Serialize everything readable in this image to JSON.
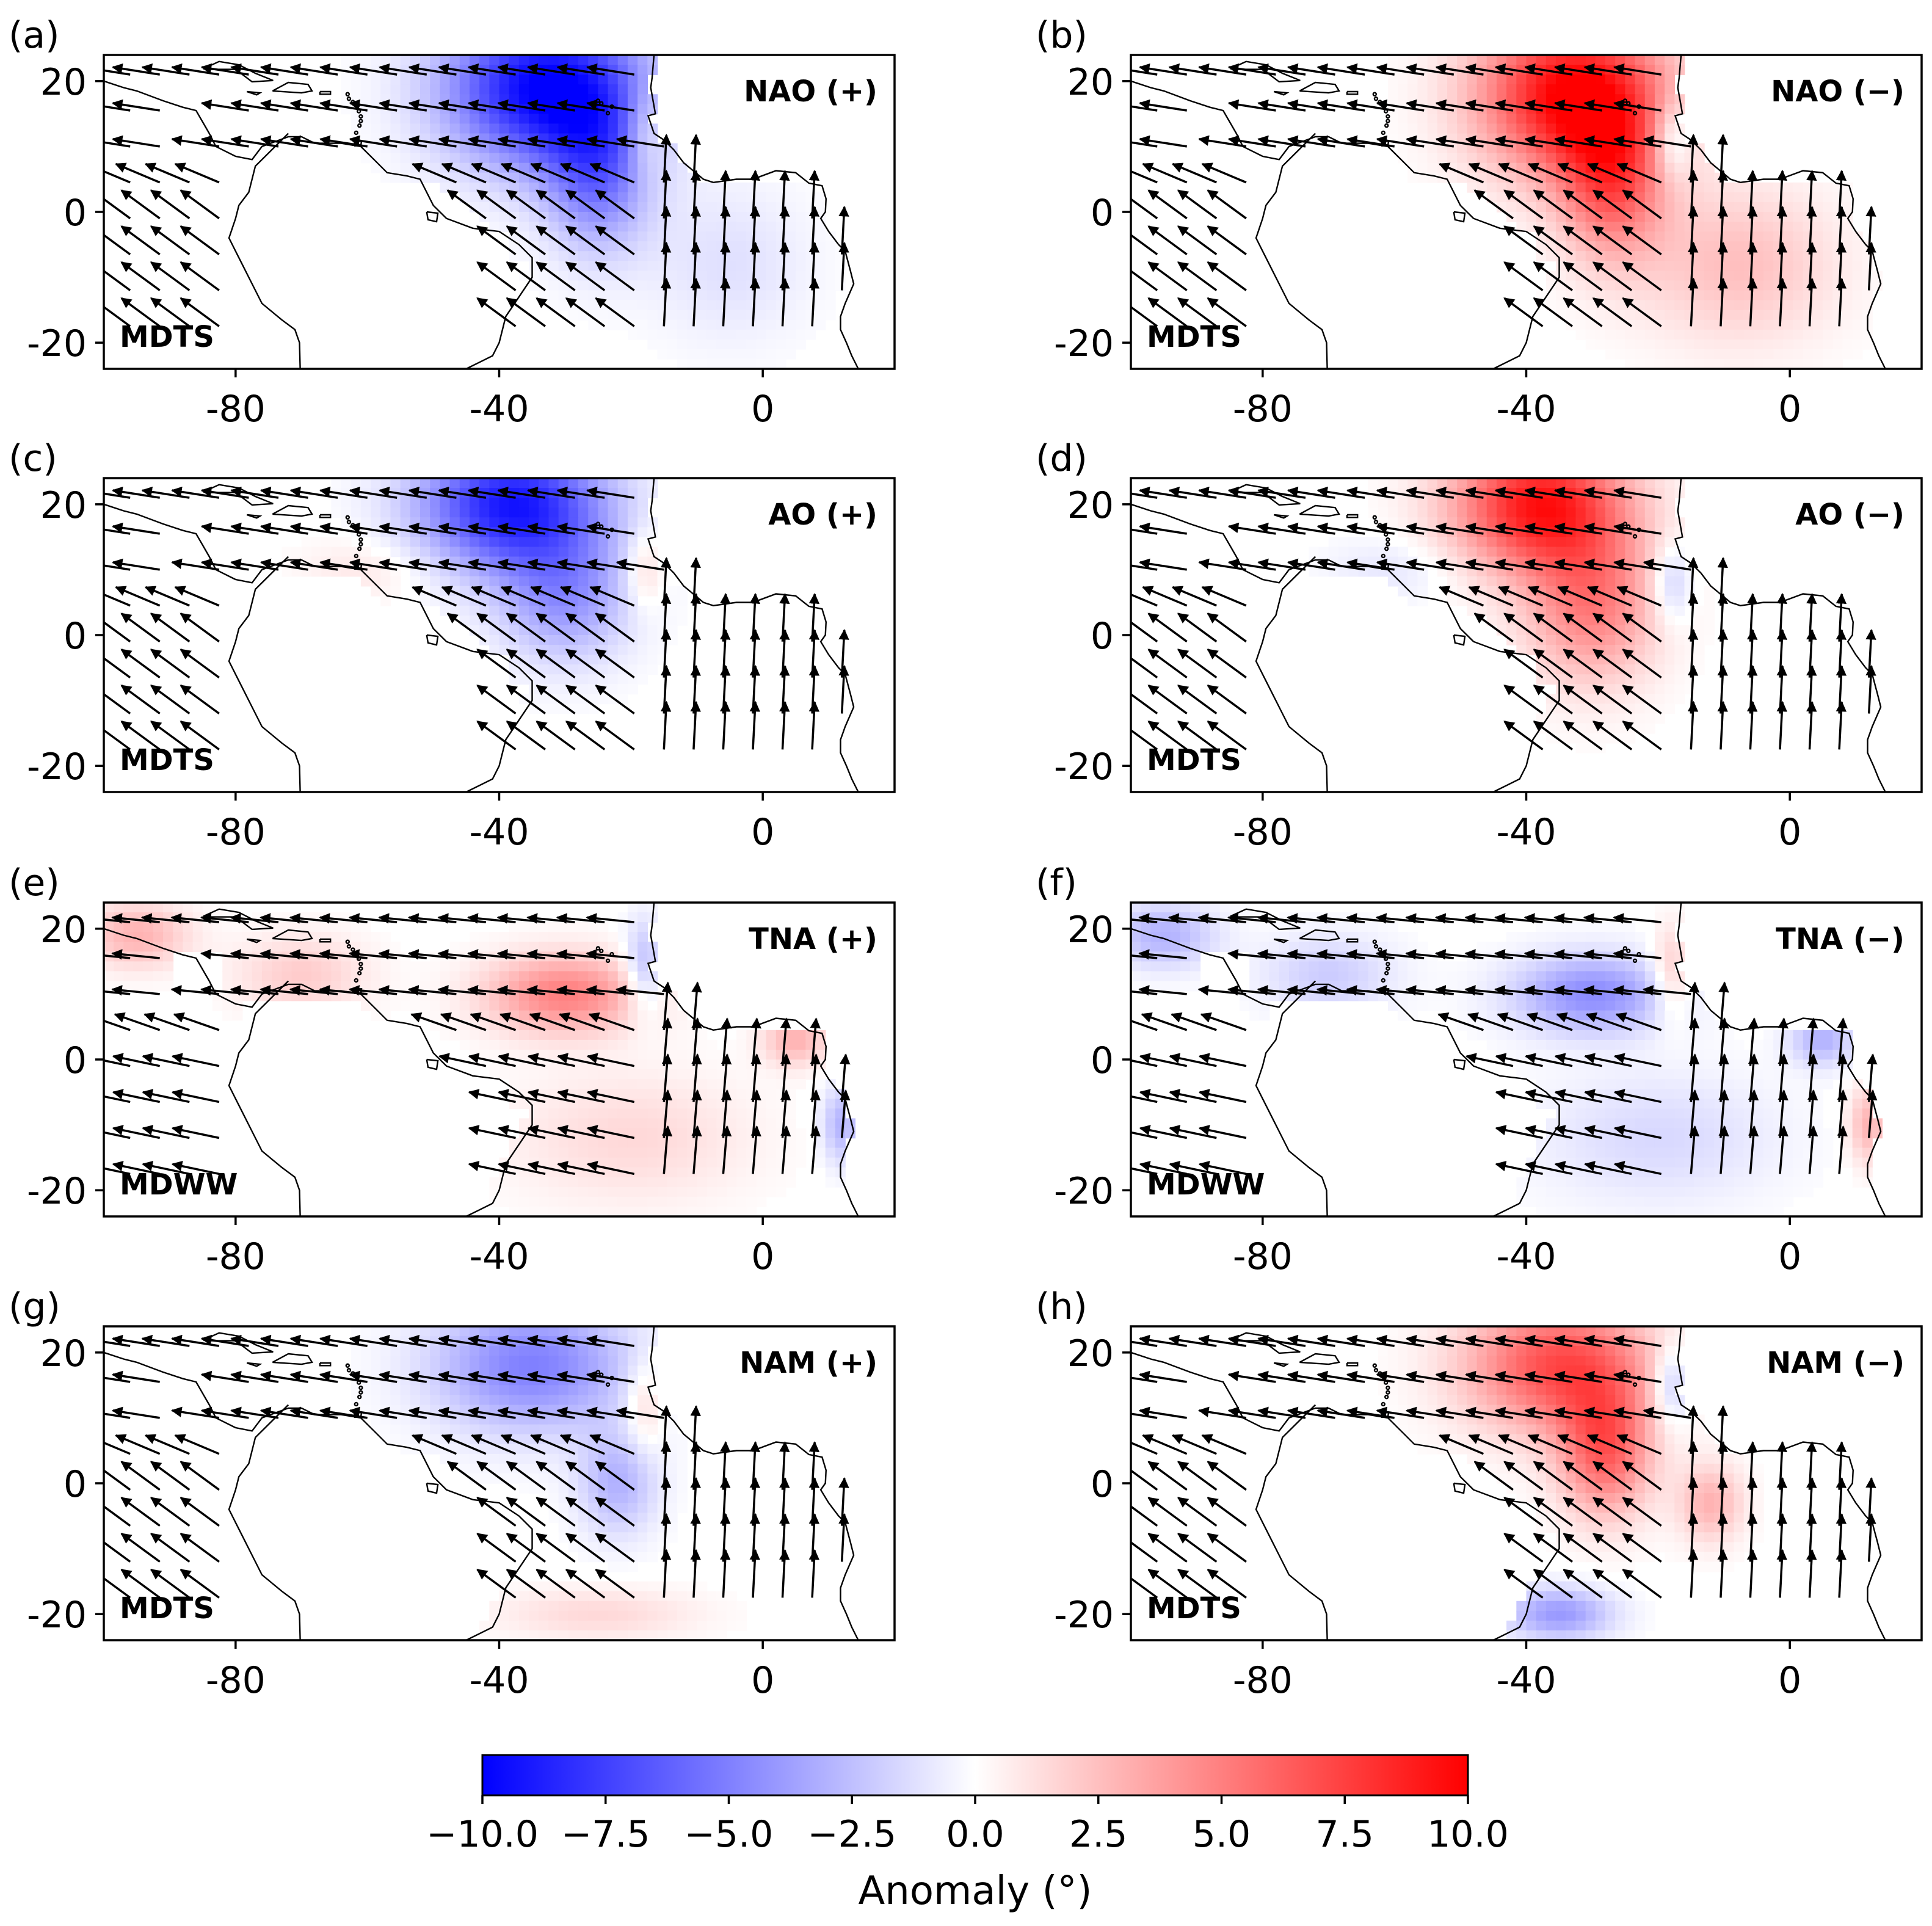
{
  "figure": {
    "colorbar": {
      "label": "Anomaly (°)",
      "vmin": -10.0,
      "vmax": 10.0,
      "ticks": [
        "−10.0",
        "−7.5",
        "−5.0",
        "−2.5",
        "0.0",
        "2.5",
        "5.0",
        "7.5",
        "10.0"
      ],
      "colors": {
        "low": "#0000ff",
        "mid": "#ffffff",
        "high": "#ff0000"
      }
    }
  },
  "chart_data": [
    {
      "type": "heatmap",
      "panel_label": "(a)",
      "index": "NAO (+)",
      "variable": "MDTS",
      "xlim": [
        -100,
        20
      ],
      "ylim": [
        -24,
        24
      ],
      "xticks": [
        "-80",
        "-40",
        "0"
      ],
      "yticks": [
        "20",
        "0",
        "-20"
      ],
      "anomaly_centers": [
        {
          "lon": -33,
          "lat": 19,
          "value": -10.0,
          "spread_lon": 15,
          "spread_lat": 12
        },
        {
          "lon": -25,
          "lat": 6,
          "value": -5.0,
          "spread_lon": 8,
          "spread_lat": 12
        },
        {
          "lon": -18,
          "lat": 12,
          "value": 2.0,
          "spread_lon": 3,
          "spread_lat": 7
        },
        {
          "lon": -5,
          "lat": -8,
          "value": -1.2,
          "spread_lon": 12,
          "spread_lat": 12
        }
      ],
      "wind_field": {
        "u_north": -0.95,
        "v_north": 0.05,
        "v_east": 0.95,
        "u_south": -0.75,
        "v_south": 0.55
      }
    },
    {
      "type": "heatmap",
      "panel_label": "(b)",
      "index": "NAO (−)",
      "variable": "MDTS",
      "xlim": [
        -100,
        20
      ],
      "ylim": [
        -24,
        24
      ],
      "xticks": [
        "-80",
        "-40",
        "0"
      ],
      "yticks": [
        "20",
        "0",
        "-20"
      ],
      "anomaly_centers": [
        {
          "lon": -33,
          "lat": 18,
          "value": 10.0,
          "spread_lon": 14,
          "spread_lat": 12
        },
        {
          "lon": -27,
          "lat": 5,
          "value": 6.0,
          "spread_lon": 8,
          "spread_lat": 12
        },
        {
          "lon": -18,
          "lat": 11,
          "value": -3.0,
          "spread_lon": 3,
          "spread_lat": 6
        },
        {
          "lon": -8,
          "lat": -8,
          "value": 2.5,
          "spread_lon": 15,
          "spread_lat": 12
        }
      ],
      "wind_field": {
        "u_north": -0.95,
        "v_north": 0.05,
        "v_east": 0.95,
        "u_south": -0.75,
        "v_south": 0.55
      }
    },
    {
      "type": "heatmap",
      "panel_label": "(c)",
      "index": "AO (+)",
      "variable": "MDTS",
      "xlim": [
        -100,
        20
      ],
      "ylim": [
        -24,
        24
      ],
      "xticks": [
        "-80",
        "-40",
        "0"
      ],
      "yticks": [
        "20",
        "0",
        "-20"
      ],
      "anomaly_centers": [
        {
          "lon": -38,
          "lat": 20,
          "value": -9.0,
          "spread_lon": 14,
          "spread_lat": 10
        },
        {
          "lon": -30,
          "lat": 6,
          "value": -4.0,
          "spread_lon": 10,
          "spread_lat": 10
        },
        {
          "lon": -18,
          "lat": 10,
          "value": 2.0,
          "spread_lon": 3,
          "spread_lat": 6
        },
        {
          "lon": -60,
          "lat": 10,
          "value": 1.0,
          "spread_lon": 10,
          "spread_lat": 5
        }
      ],
      "wind_field": {
        "u_north": -0.95,
        "v_north": 0.05,
        "v_east": 0.95,
        "u_south": -0.75,
        "v_south": 0.55
      }
    },
    {
      "type": "heatmap",
      "panel_label": "(d)",
      "index": "AO (−)",
      "variable": "MDTS",
      "xlim": [
        -100,
        20
      ],
      "ylim": [
        -24,
        24
      ],
      "xticks": [
        "-80",
        "-40",
        "0"
      ],
      "yticks": [
        "20",
        "0",
        "-20"
      ],
      "anomaly_centers": [
        {
          "lon": -38,
          "lat": 20,
          "value": 9.0,
          "spread_lon": 13,
          "spread_lat": 10
        },
        {
          "lon": -30,
          "lat": 5,
          "value": 5.0,
          "spread_lon": 10,
          "spread_lat": 12
        },
        {
          "lon": -18,
          "lat": 8,
          "value": -2.5,
          "spread_lon": 3,
          "spread_lat": 6
        },
        {
          "lon": -60,
          "lat": 10,
          "value": -1.0,
          "spread_lon": 10,
          "spread_lat": 5
        }
      ],
      "wind_field": {
        "u_north": -0.95,
        "v_north": 0.05,
        "v_east": 0.95,
        "u_south": -0.75,
        "v_south": 0.55
      }
    },
    {
      "type": "heatmap",
      "panel_label": "(e)",
      "index": "TNA (+)",
      "variable": "MDWW",
      "xlim": [
        -100,
        20
      ],
      "ylim": [
        -24,
        24
      ],
      "xticks": [
        "-80",
        "-40",
        "0"
      ],
      "yticks": [
        "20",
        "0",
        "-20"
      ],
      "anomaly_centers": [
        {
          "lon": -30,
          "lat": 10,
          "value": 5.0,
          "spread_lon": 12,
          "spread_lat": 6
        },
        {
          "lon": -95,
          "lat": 19,
          "value": 3.0,
          "spread_lon": 8,
          "spread_lat": 5
        },
        {
          "lon": -70,
          "lat": 13,
          "value": 2.0,
          "spread_lon": 10,
          "spread_lat": 6
        },
        {
          "lon": -18,
          "lat": 14,
          "value": -3.0,
          "spread_lon": 3,
          "spread_lat": 7
        },
        {
          "lon": 5,
          "lat": 3,
          "value": 3.0,
          "spread_lon": 5,
          "spread_lat": 4
        },
        {
          "lon": 12,
          "lat": -10,
          "value": -3.0,
          "spread_lon": 3,
          "spread_lat": 6
        },
        {
          "lon": -20,
          "lat": -12,
          "value": 1.5,
          "spread_lon": 18,
          "spread_lat": 10
        }
      ],
      "wind_field": {
        "u_north": -1.0,
        "v_north": 0.0,
        "v_east": 0.6,
        "u_south": -0.95,
        "v_south": 0.2
      }
    },
    {
      "type": "heatmap",
      "panel_label": "(f)",
      "index": "TNA (−)",
      "variable": "MDWW",
      "xlim": [
        -100,
        20
      ],
      "ylim": [
        -24,
        24
      ],
      "xticks": [
        "-80",
        "-40",
        "0"
      ],
      "yticks": [
        "20",
        "0",
        "-20"
      ],
      "anomaly_centers": [
        {
          "lon": -30,
          "lat": 10,
          "value": -4.5,
          "spread_lon": 12,
          "spread_lat": 6
        },
        {
          "lon": -95,
          "lat": 19,
          "value": -3.0,
          "spread_lon": 8,
          "spread_lat": 5
        },
        {
          "lon": -70,
          "lat": 13,
          "value": -2.0,
          "spread_lon": 10,
          "spread_lat": 6
        },
        {
          "lon": -18,
          "lat": 13,
          "value": 2.5,
          "spread_lon": 3,
          "spread_lat": 7
        },
        {
          "lon": 5,
          "lat": 3,
          "value": -3.0,
          "spread_lon": 5,
          "spread_lat": 4
        },
        {
          "lon": 12,
          "lat": -10,
          "value": 3.0,
          "spread_lon": 3,
          "spread_lat": 6
        },
        {
          "lon": -20,
          "lat": -12,
          "value": -1.5,
          "spread_lon": 18,
          "spread_lat": 10
        }
      ],
      "wind_field": {
        "u_north": -1.0,
        "v_north": 0.0,
        "v_east": 0.6,
        "u_south": -0.95,
        "v_south": 0.2
      }
    },
    {
      "type": "heatmap",
      "panel_label": "(g)",
      "index": "NAM (+)",
      "variable": "MDTS",
      "xlim": [
        -100,
        20
      ],
      "ylim": [
        -24,
        24
      ],
      "xticks": [
        "-80",
        "-40",
        "0"
      ],
      "yticks": [
        "20",
        "0",
        "-20"
      ],
      "anomaly_centers": [
        {
          "lon": -35,
          "lat": 18,
          "value": -5.0,
          "spread_lon": 15,
          "spread_lat": 10
        },
        {
          "lon": -22,
          "lat": 0,
          "value": -3.0,
          "spread_lon": 6,
          "spread_lat": 8
        },
        {
          "lon": -18,
          "lat": 12,
          "value": 2.0,
          "spread_lon": 3,
          "spread_lat": 7
        },
        {
          "lon": -25,
          "lat": -20,
          "value": 1.5,
          "spread_lon": 15,
          "spread_lat": 4
        }
      ],
      "wind_field": {
        "u_north": -0.95,
        "v_north": 0.05,
        "v_east": 0.95,
        "u_south": -0.75,
        "v_south": 0.55
      }
    },
    {
      "type": "heatmap",
      "panel_label": "(h)",
      "index": "NAM (−)",
      "variable": "MDTS",
      "xlim": [
        -100,
        20
      ],
      "ylim": [
        -24,
        24
      ],
      "xticks": [
        "-80",
        "-40",
        "0"
      ],
      "yticks": [
        "20",
        "0",
        "-20"
      ],
      "anomaly_centers": [
        {
          "lon": -35,
          "lat": 18,
          "value": 7.0,
          "spread_lon": 14,
          "spread_lat": 10
        },
        {
          "lon": -28,
          "lat": 5,
          "value": 6.0,
          "spread_lon": 7,
          "spread_lat": 10
        },
        {
          "lon": -18,
          "lat": 15,
          "value": -3.0,
          "spread_lon": 3,
          "spread_lat": 6
        },
        {
          "lon": -35,
          "lat": -20,
          "value": -4.0,
          "spread_lon": 8,
          "spread_lat": 4
        },
        {
          "lon": -12,
          "lat": -3,
          "value": 3.0,
          "spread_lon": 5,
          "spread_lat": 6
        }
      ],
      "wind_field": {
        "u_north": -0.95,
        "v_north": 0.05,
        "v_east": 0.95,
        "u_south": -0.75,
        "v_south": 0.55
      }
    }
  ]
}
